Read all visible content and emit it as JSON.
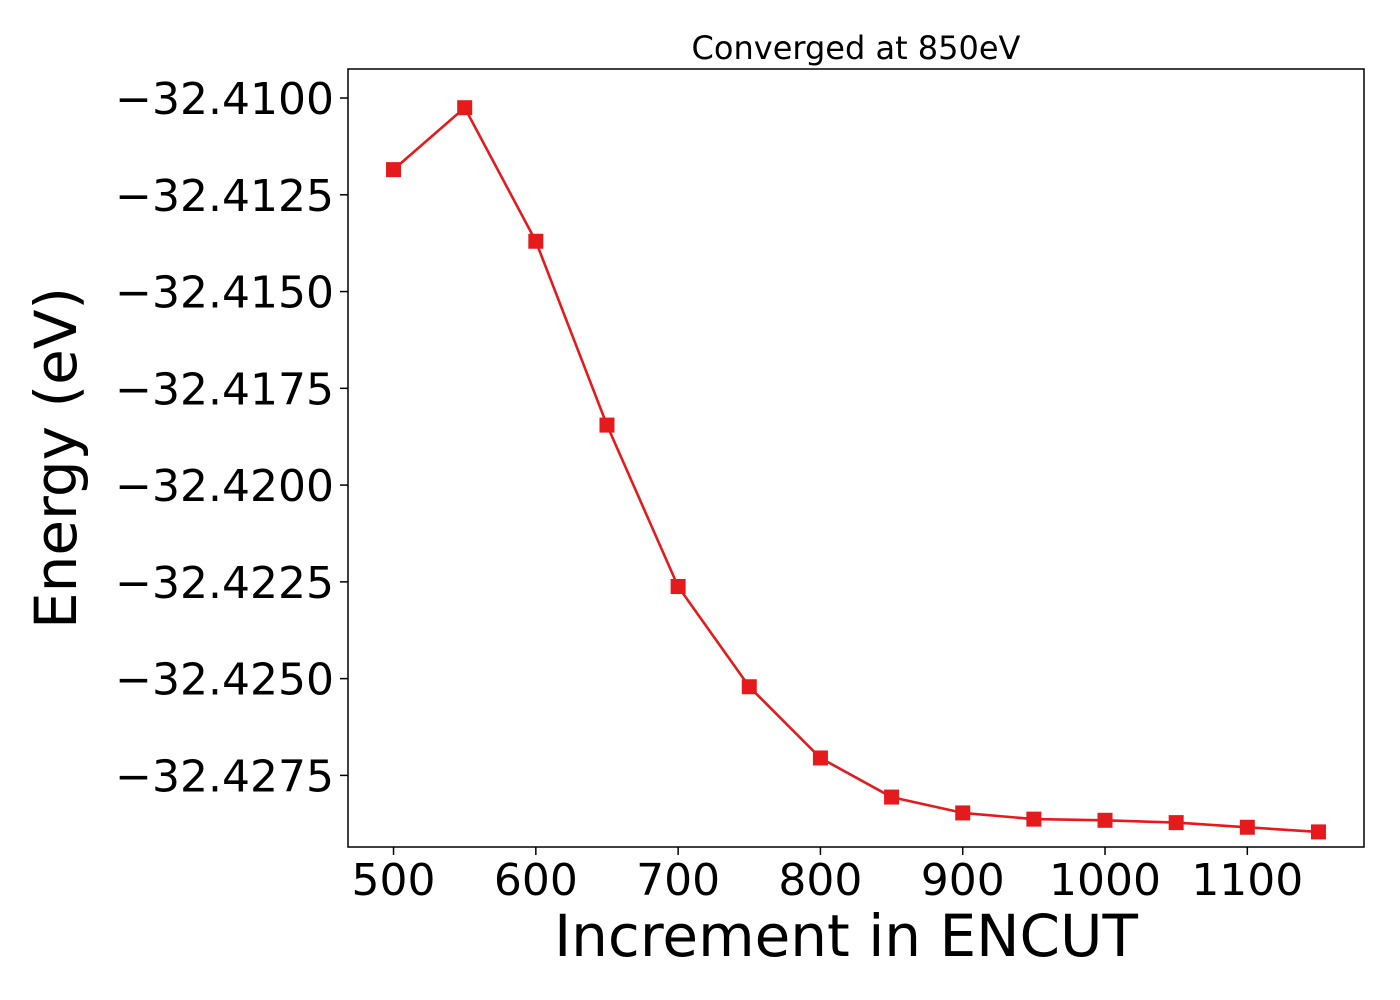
{
  "chart_data": {
    "type": "line",
    "title": "Converged at 850eV",
    "xlabel": "Increment in ENCUT",
    "ylabel": "Energy (eV)",
    "xlim": [
      468,
      1182
    ],
    "ylim": [
      -32.42935,
      -32.40925
    ],
    "xticks": [
      500,
      600,
      700,
      800,
      900,
      1000,
      1100
    ],
    "xtick_labels": [
      "500",
      "600",
      "700",
      "800",
      "900",
      "1000",
      "1100"
    ],
    "yticks": [
      -32.41,
      -32.4125,
      -32.415,
      -32.4175,
      -32.42,
      -32.4225,
      -32.425,
      -32.4275
    ],
    "ytick_labels": [
      "−32.4100",
      "−32.4125",
      "−32.4150",
      "−32.4175",
      "−32.4200",
      "−32.4225",
      "−32.4250",
      "−32.4275"
    ],
    "grid": false,
    "legend": "none",
    "series": [
      {
        "color": "#e41a1c",
        "marker": "square",
        "x": [
          500,
          550,
          600,
          650,
          700,
          750,
          800,
          850,
          900,
          950,
          1000,
          1050,
          1100,
          1150
        ],
        "y": [
          -32.41185,
          -32.41025,
          -32.4137,
          -32.41845,
          -32.42262,
          -32.42521,
          -32.42705,
          -32.42806,
          -32.42847,
          -32.42863,
          -32.42866,
          -32.42872,
          -32.42884,
          -32.42896
        ]
      }
    ]
  }
}
